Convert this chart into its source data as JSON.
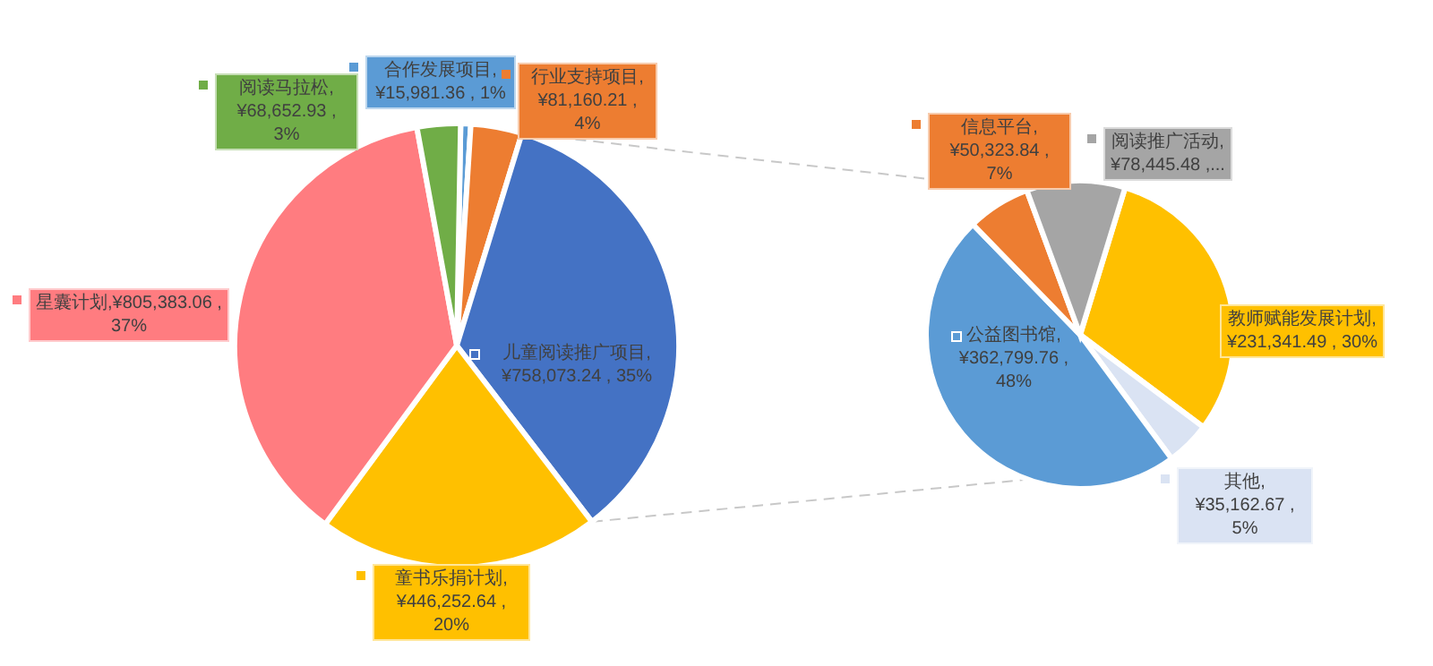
{
  "chart_data": [
    {
      "type": "pie",
      "legend": "top",
      "categories": [
        "合作发展项目",
        "行业支持项目",
        "儿童阅读推广项目",
        "童书乐捐计划",
        "星囊计划",
        "阅读马拉松"
      ],
      "values": [
        15981.36,
        81160.21,
        758073.24,
        446252.64,
        805383.06,
        68652.93
      ],
      "colors": [
        "#5b9bd5",
        "#ed7d31",
        "#4472c4",
        "#ffc000",
        "#ff7c80",
        "#70ad47"
      ],
      "value_labels": [
        ", ¥15,981.36 , 1%",
        ", ¥81,160.21 , 4%",
        ", ¥758,073.24 , 35%",
        ", ¥446,252.64 , 20%",
        ",¥805,383.06 , 37%",
        ", ¥68,652.93 , 3%"
      ]
    },
    {
      "type": "pie",
      "legend": "top",
      "categories": [
        "教师赋能发展计划",
        "其他",
        "公益图书馆",
        "信息平台",
        "阅读推广活动"
      ],
      "values": [
        231341.49,
        35162.67,
        362799.76,
        50323.84,
        78445.48
      ],
      "colors": [
        "#ffc000",
        "#dae3f3",
        "#5b9bd5",
        "#ed7d31",
        "#a5a5a5"
      ],
      "value_labels": [
        ", ¥231,341.49 , 30%",
        ",¥35,162.67 , 5%",
        ", ¥362,799.76 , 48%",
        ", ¥50,323.84 , 7%",
        ", ¥78,445.48 ,..."
      ]
    }
  ]
}
